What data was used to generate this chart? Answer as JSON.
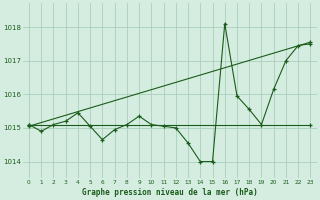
{
  "title": "Graphe pression niveau de la mer (hPa)",
  "bg_color": "#d5ede0",
  "grid_color": "#aacfbc",
  "line_color": "#1a5c1a",
  "xlim": [
    -0.5,
    23.5
  ],
  "ylim": [
    1013.5,
    1018.7
  ],
  "yticks": [
    1014,
    1015,
    1016,
    1017,
    1018
  ],
  "xticks": [
    0,
    1,
    2,
    3,
    4,
    5,
    6,
    7,
    8,
    9,
    10,
    11,
    12,
    13,
    14,
    15,
    16,
    17,
    18,
    19,
    20,
    21,
    22,
    23
  ],
  "series1_x": [
    0,
    1,
    2,
    3,
    4,
    5,
    6,
    7,
    8,
    9,
    10,
    11,
    12,
    13,
    14,
    15,
    16,
    17,
    18,
    19,
    20,
    21,
    22,
    23
  ],
  "series1_y": [
    1015.1,
    1014.9,
    1015.1,
    1015.2,
    1015.45,
    1015.05,
    1014.65,
    1014.95,
    1015.1,
    1015.35,
    1015.1,
    1015.05,
    1015.0,
    1014.55,
    1014.0,
    1014.0,
    1018.1,
    1015.95,
    1015.55,
    1015.1,
    1016.15,
    1017.0,
    1017.45,
    1017.5
  ],
  "series2_x": [
    0,
    23
  ],
  "series2_y": [
    1015.05,
    1017.55
  ],
  "series3_x": [
    0,
    23
  ],
  "series3_y": [
    1015.1,
    1015.1
  ],
  "figsize": [
    3.2,
    2.0
  ],
  "dpi": 100
}
